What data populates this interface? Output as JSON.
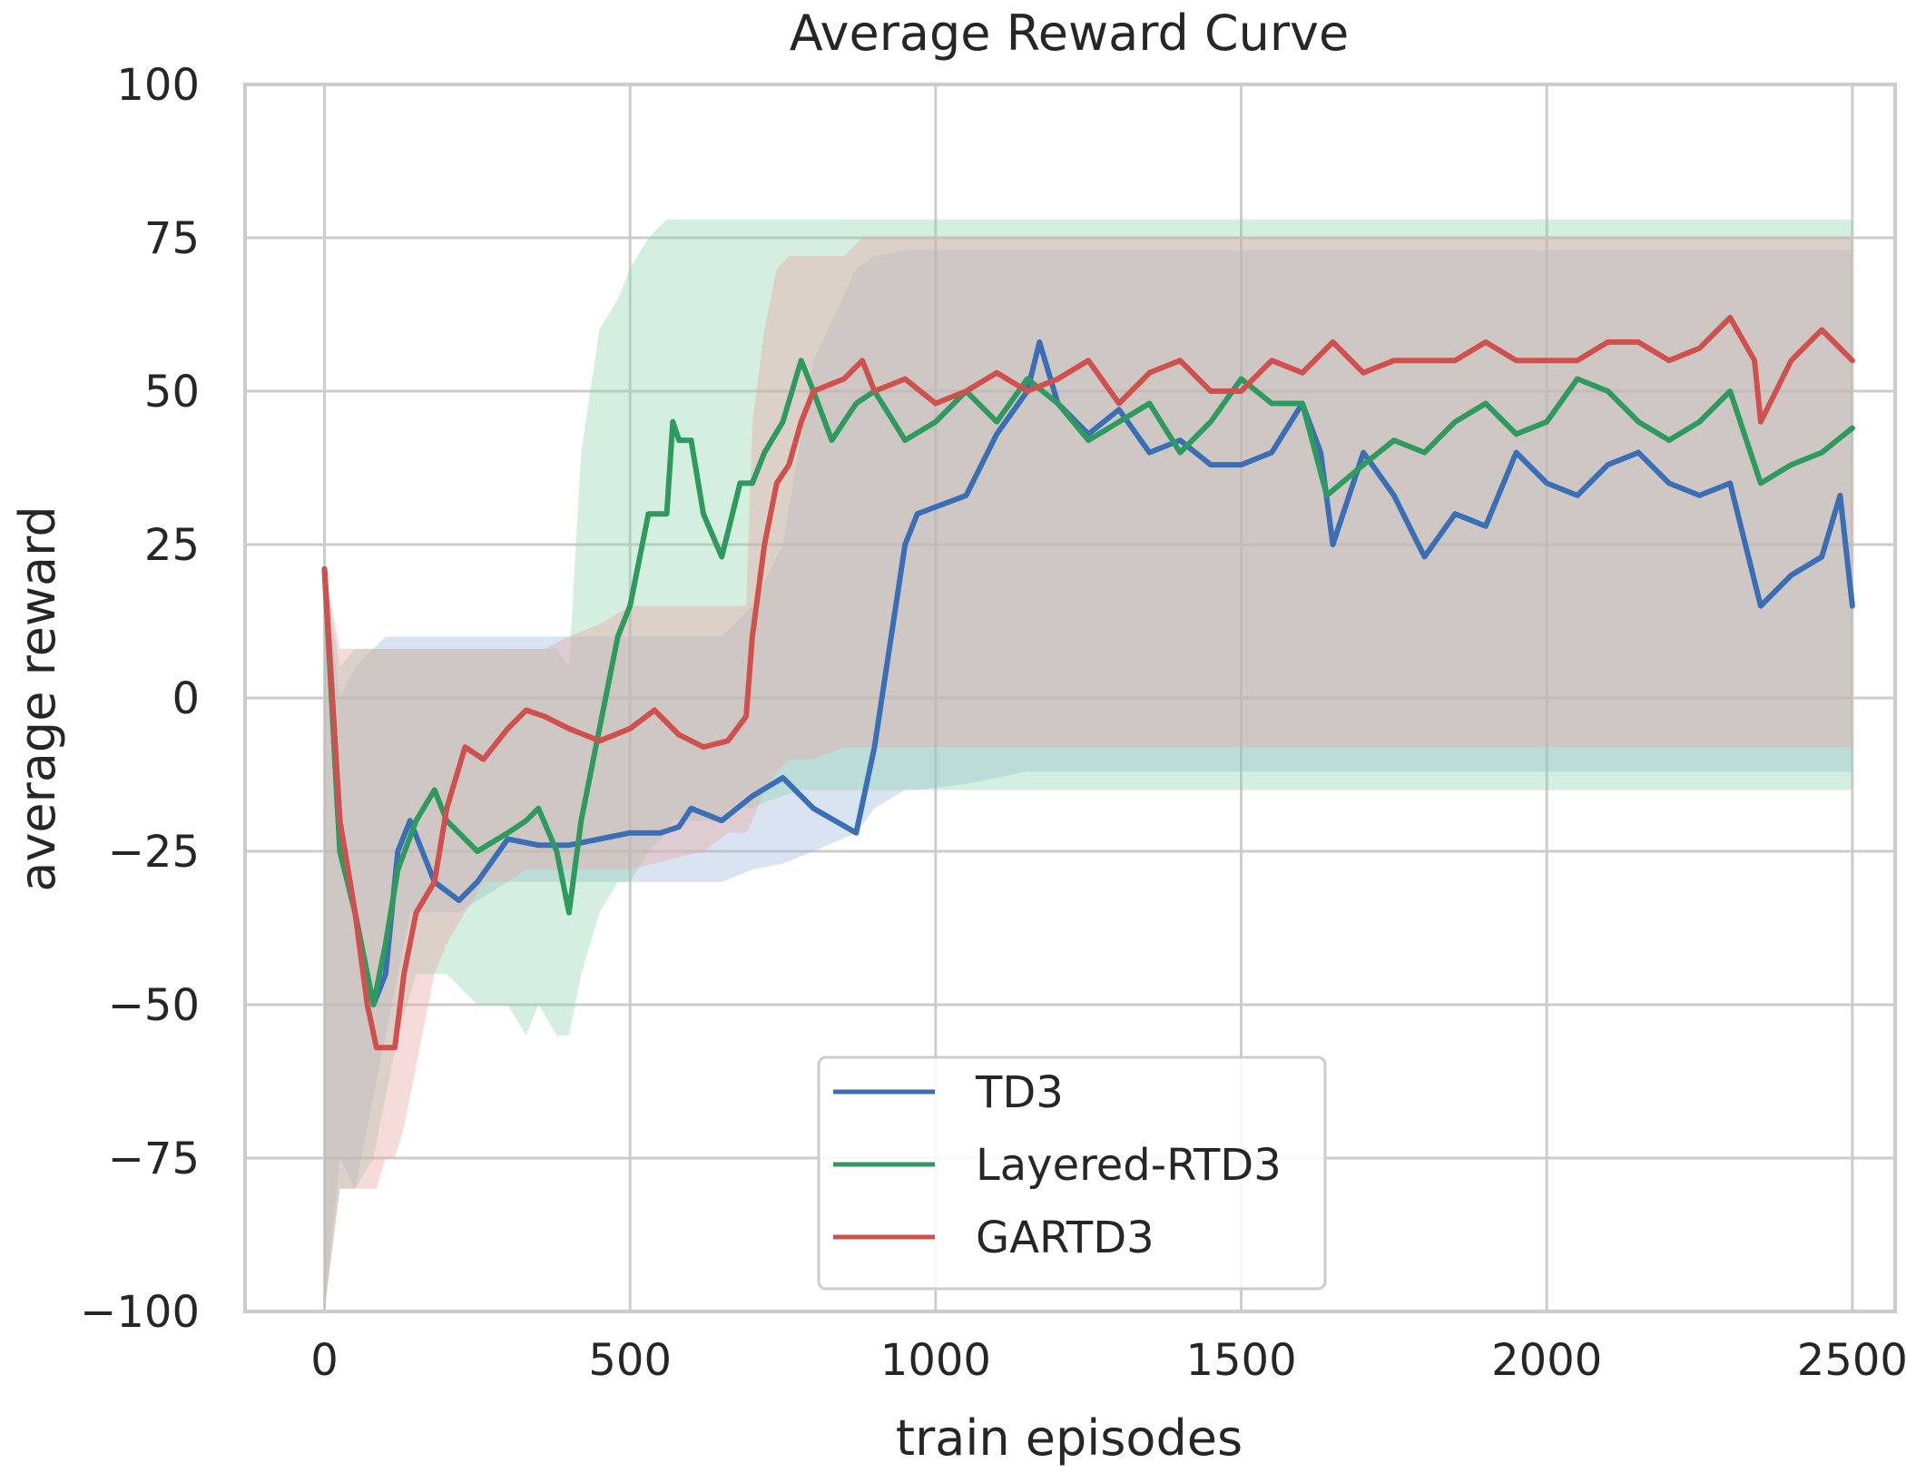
{
  "chart_data": {
    "type": "line",
    "title": "Average Reward Curve",
    "xlabel": "train episodes",
    "ylabel": "average reward",
    "xlim": [
      -130,
      2570
    ],
    "ylim": [
      -100,
      100
    ],
    "x_ticks": [
      0,
      500,
      1000,
      1500,
      2000,
      2500
    ],
    "x_tick_labels": [
      "0",
      "500",
      "1000",
      "1500",
      "2000",
      "2500"
    ],
    "y_ticks": [
      -100,
      -75,
      -50,
      -25,
      0,
      25,
      50,
      75,
      100
    ],
    "y_tick_labels": [
      "−100",
      "−75",
      "−50",
      "−25",
      "0",
      "25",
      "50",
      "75",
      "100"
    ],
    "grid": true,
    "legend_position": "bottom-center",
    "series": [
      {
        "name": "TD3",
        "color": "#3a6fb5",
        "band_color": "#9fb8dc",
        "band_opacity": 0.4,
        "x": [
          0,
          25,
          50,
          80,
          100,
          120,
          140,
          180,
          220,
          250,
          300,
          350,
          400,
          450,
          500,
          550,
          580,
          600,
          650,
          700,
          750,
          800,
          870,
          900,
          950,
          970,
          1050,
          1100,
          1150,
          1170,
          1200,
          1250,
          1300,
          1350,
          1400,
          1450,
          1500,
          1550,
          1600,
          1630,
          1650,
          1700,
          1750,
          1800,
          1850,
          1900,
          1950,
          2000,
          2050,
          2100,
          2150,
          2200,
          2250,
          2300,
          2350,
          2400,
          2450,
          2480,
          2500
        ],
        "values": [
          21,
          -20,
          -35,
          -50,
          -45,
          -25,
          -20,
          -30,
          -33,
          -30,
          -23,
          -24,
          -24,
          -23,
          -22,
          -22,
          -21,
          -18,
          -20,
          -16,
          -13,
          -18,
          -22,
          -8,
          25,
          30,
          33,
          43,
          50,
          58,
          48,
          43,
          47,
          40,
          42,
          38,
          38,
          40,
          48,
          40,
          25,
          40,
          33,
          23,
          30,
          28,
          40,
          35,
          33,
          38,
          40,
          35,
          33,
          35,
          15,
          20,
          23,
          33,
          15
        ],
        "band_lower": [
          -100,
          -75,
          -80,
          -65,
          -55,
          -45,
          -35,
          -35,
          -35,
          -33,
          -30,
          -30,
          -30,
          -30,
          -30,
          -30,
          -30,
          -30,
          -30,
          -28,
          -27,
          -25,
          -22,
          -18,
          -15,
          -15,
          -14,
          -13,
          -12,
          -12,
          -12,
          -12,
          -12,
          -12,
          -12,
          -12,
          -12,
          -12,
          -12,
          -12,
          -12,
          -12,
          -12,
          -12,
          -12,
          -12,
          -12,
          -12,
          -12,
          -12,
          -12,
          -12,
          -12,
          -12,
          -12,
          -12,
          -12,
          -12,
          -12
        ],
        "band_upper": [
          21,
          0,
          5,
          8,
          10,
          10,
          10,
          10,
          10,
          10,
          10,
          10,
          10,
          10,
          10,
          10,
          10,
          10,
          10,
          15,
          25,
          55,
          70,
          72,
          73,
          73,
          73,
          73,
          73,
          73,
          73,
          73,
          73,
          73,
          73,
          73,
          73,
          73,
          73,
          73,
          73,
          73,
          73,
          73,
          73,
          73,
          73,
          73,
          73,
          73,
          73,
          73,
          73,
          73,
          73,
          73,
          73,
          73,
          73
        ]
      },
      {
        "name": "Layered-RTD3",
        "color": "#2e9a5e",
        "band_color": "#8fd1ad",
        "band_opacity": 0.38,
        "x": [
          0,
          25,
          50,
          80,
          100,
          120,
          150,
          180,
          200,
          250,
          300,
          330,
          350,
          380,
          400,
          420,
          450,
          480,
          500,
          530,
          560,
          570,
          580,
          600,
          620,
          650,
          680,
          700,
          720,
          750,
          780,
          800,
          830,
          870,
          900,
          950,
          1000,
          1050,
          1100,
          1150,
          1200,
          1250,
          1300,
          1350,
          1400,
          1450,
          1500,
          1550,
          1600,
          1640,
          1700,
          1750,
          1800,
          1850,
          1900,
          1950,
          2000,
          2050,
          2100,
          2150,
          2200,
          2250,
          2300,
          2350,
          2400,
          2450,
          2500
        ],
        "values": [
          21,
          -25,
          -35,
          -50,
          -40,
          -28,
          -20,
          -15,
          -20,
          -25,
          -22,
          -20,
          -18,
          -25,
          -35,
          -20,
          -5,
          10,
          15,
          30,
          30,
          45,
          42,
          42,
          30,
          23,
          35,
          35,
          40,
          45,
          55,
          50,
          42,
          48,
          50,
          42,
          45,
          50,
          45,
          52,
          48,
          42,
          45,
          48,
          40,
          45,
          52,
          48,
          48,
          33,
          38,
          42,
          40,
          45,
          48,
          43,
          45,
          52,
          50,
          45,
          42,
          45,
          50,
          35,
          38,
          40,
          44
        ],
        "band_lower": [
          -100,
          -80,
          -80,
          -75,
          -65,
          -55,
          -45,
          -45,
          -45,
          -50,
          -50,
          -55,
          -50,
          -55,
          -55,
          -45,
          -35,
          -30,
          -30,
          -25,
          -22,
          -20,
          -20,
          -20,
          -20,
          -20,
          -18,
          -18,
          -17,
          -16,
          -15,
          -15,
          -15,
          -15,
          -15,
          -15,
          -15,
          -15,
          -15,
          -15,
          -15,
          -15,
          -15,
          -15,
          -15,
          -15,
          -15,
          -15,
          -15,
          -15,
          -15,
          -15,
          -15,
          -15,
          -15,
          -15,
          -15,
          -15,
          -15,
          -15,
          -15,
          -15,
          -15,
          -15,
          -15,
          -15,
          -15
        ],
        "band_upper": [
          21,
          5,
          8,
          8,
          8,
          8,
          8,
          8,
          8,
          8,
          8,
          8,
          8,
          8,
          5,
          40,
          60,
          65,
          70,
          75,
          78,
          78,
          78,
          78,
          78,
          78,
          78,
          78,
          78,
          78,
          78,
          78,
          78,
          78,
          78,
          78,
          78,
          78,
          78,
          78,
          78,
          78,
          78,
          78,
          78,
          78,
          78,
          78,
          78,
          78,
          78,
          78,
          78,
          78,
          78,
          78,
          78,
          78,
          78,
          78,
          78,
          78,
          78,
          78,
          78,
          78,
          78
        ]
      },
      {
        "name": "GARTD3",
        "color": "#d0504e",
        "band_color": "#e8a9a8",
        "band_opacity": 0.42,
        "x": [
          0,
          25,
          50,
          70,
          85,
          100,
          115,
          130,
          150,
          180,
          200,
          230,
          260,
          300,
          330,
          360,
          400,
          450,
          500,
          540,
          580,
          620,
          660,
          690,
          700,
          720,
          740,
          760,
          780,
          800,
          850,
          880,
          900,
          950,
          1000,
          1050,
          1100,
          1150,
          1200,
          1250,
          1300,
          1350,
          1400,
          1450,
          1500,
          1550,
          1600,
          1650,
          1700,
          1750,
          1800,
          1850,
          1900,
          1950,
          2000,
          2050,
          2100,
          2150,
          2200,
          2250,
          2300,
          2340,
          2350,
          2400,
          2450,
          2500
        ],
        "values": [
          21,
          -20,
          -35,
          -50,
          -57,
          -57,
          -57,
          -45,
          -35,
          -30,
          -18,
          -8,
          -10,
          -5,
          -2,
          -3,
          -5,
          -7,
          -5,
          -2,
          -6,
          -8,
          -7,
          -3,
          10,
          25,
          35,
          38,
          45,
          50,
          52,
          55,
          50,
          52,
          48,
          50,
          53,
          50,
          52,
          55,
          48,
          53,
          55,
          50,
          50,
          55,
          53,
          58,
          53,
          55,
          55,
          55,
          58,
          55,
          55,
          55,
          58,
          58,
          55,
          57,
          62,
          55,
          45,
          55,
          60,
          55
        ],
        "band_lower": [
          -100,
          -80,
          -80,
          -80,
          -80,
          -75,
          -75,
          -70,
          -60,
          -45,
          -40,
          -35,
          -30,
          -30,
          -28,
          -28,
          -28,
          -28,
          -28,
          -27,
          -26,
          -25,
          -22,
          -22,
          -20,
          -15,
          -12,
          -10,
          -10,
          -10,
          -8,
          -8,
          -8,
          -8,
          -8,
          -8,
          -8,
          -8,
          -8,
          -8,
          -8,
          -8,
          -8,
          -8,
          -8,
          -8,
          -8,
          -8,
          -8,
          -8,
          -8,
          -8,
          -8,
          -8,
          -8,
          -8,
          -8,
          -8,
          -8,
          -8,
          -8,
          -8,
          -8,
          -8,
          -8,
          -8
        ],
        "band_upper": [
          21,
          8,
          8,
          8,
          8,
          8,
          8,
          8,
          8,
          8,
          8,
          8,
          8,
          8,
          8,
          8,
          10,
          12,
          15,
          15,
          15,
          15,
          15,
          15,
          45,
          60,
          70,
          72,
          72,
          72,
          72,
          75,
          75,
          75,
          75,
          75,
          75,
          75,
          75,
          75,
          75,
          75,
          75,
          75,
          75,
          75,
          75,
          75,
          75,
          75,
          75,
          75,
          75,
          75,
          75,
          75,
          75,
          75,
          75,
          75,
          75,
          75,
          75,
          75,
          75,
          75
        ]
      }
    ]
  }
}
